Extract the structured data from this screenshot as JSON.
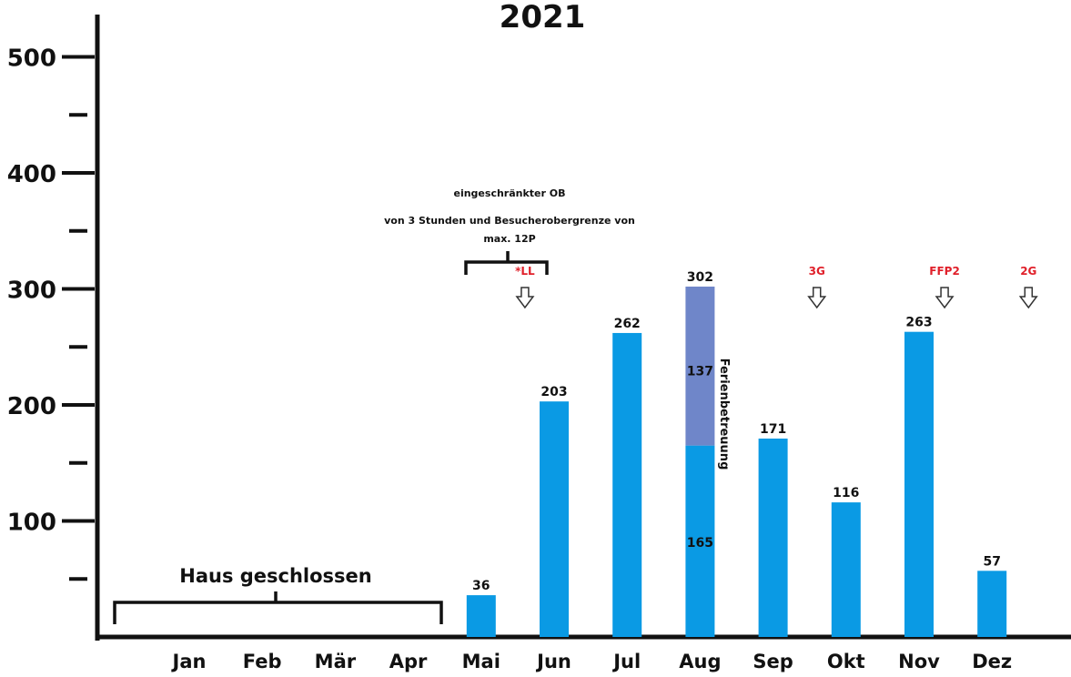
{
  "chart_data": {
    "type": "bar",
    "title": "2021",
    "categories": [
      "Jan",
      "Feb",
      "Mär",
      "Apr",
      "Mai",
      "Jun",
      "Jul",
      "Aug",
      "Sep",
      "Okt",
      "Nov",
      "Dez"
    ],
    "series": [
      {
        "values": [
          0,
          0,
          0,
          0,
          36,
          203,
          262,
          165,
          171,
          116,
          263,
          57
        ],
        "color": "#0a9ae4"
      },
      {
        "name": "Ferienbetreuung",
        "values": [
          0,
          0,
          0,
          0,
          0,
          0,
          0,
          137,
          0,
          0,
          0,
          0
        ],
        "color": "#6f86c9"
      }
    ],
    "bar_labels": [
      "",
      "",
      "",
      "",
      "36",
      "203",
      "262",
      "302",
      "171",
      "116",
      "263",
      "57"
    ],
    "segment_labels": {
      "Aug": [
        "165",
        "137"
      ]
    },
    "ylim": [
      0,
      500
    ],
    "yticks": [
      100,
      200,
      300,
      400,
      500
    ],
    "ytick_labels": [
      "100",
      "200",
      "300",
      "400",
      "500"
    ],
    "annotations": {
      "closed_label": "Haus geschlossen",
      "restricted_lines": [
        "eingeschränkter OB",
        "von 3 Stunden und Besucherobergrenze von",
        "max. 12P"
      ],
      "markers": [
        {
          "label": "*LL",
          "position": 4.6
        },
        {
          "label": "3G",
          "position": 8.6
        },
        {
          "label": "FFP2",
          "position": 10.35
        },
        {
          "label": "2G",
          "position": 11.5
        }
      ]
    },
    "grid": false,
    "legend": "none"
  }
}
